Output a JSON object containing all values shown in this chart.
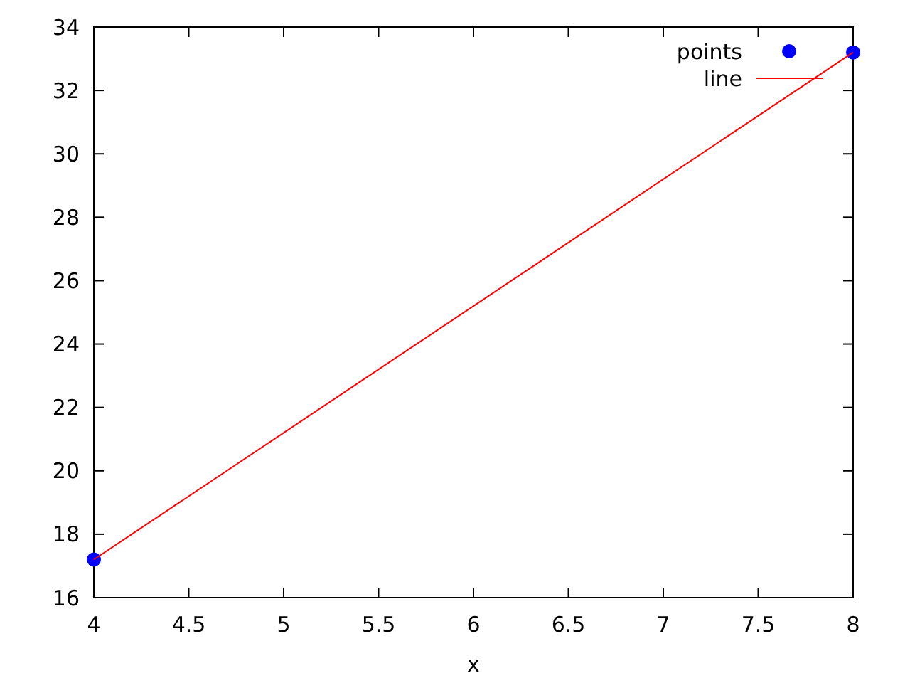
{
  "chart_data": {
    "type": "scatter",
    "xlabel": "x",
    "x": [
      4,
      8
    ],
    "series": [
      {
        "name": "points",
        "color": "#0000ff",
        "marker": "circle",
        "values": [
          17.2,
          33.2
        ]
      },
      {
        "name": "line",
        "type": "line",
        "color": "#ff0000",
        "values": [
          17.2,
          33.2
        ]
      }
    ],
    "xlim": [
      4,
      8
    ],
    "xticks": [
      4,
      4.5,
      5,
      5.5,
      6,
      6.5,
      7,
      7.5,
      8
    ],
    "ylim": [
      16,
      34
    ],
    "yticks": [
      16,
      18,
      20,
      22,
      24,
      26,
      28,
      30,
      32,
      34
    ],
    "legend": "top right"
  }
}
